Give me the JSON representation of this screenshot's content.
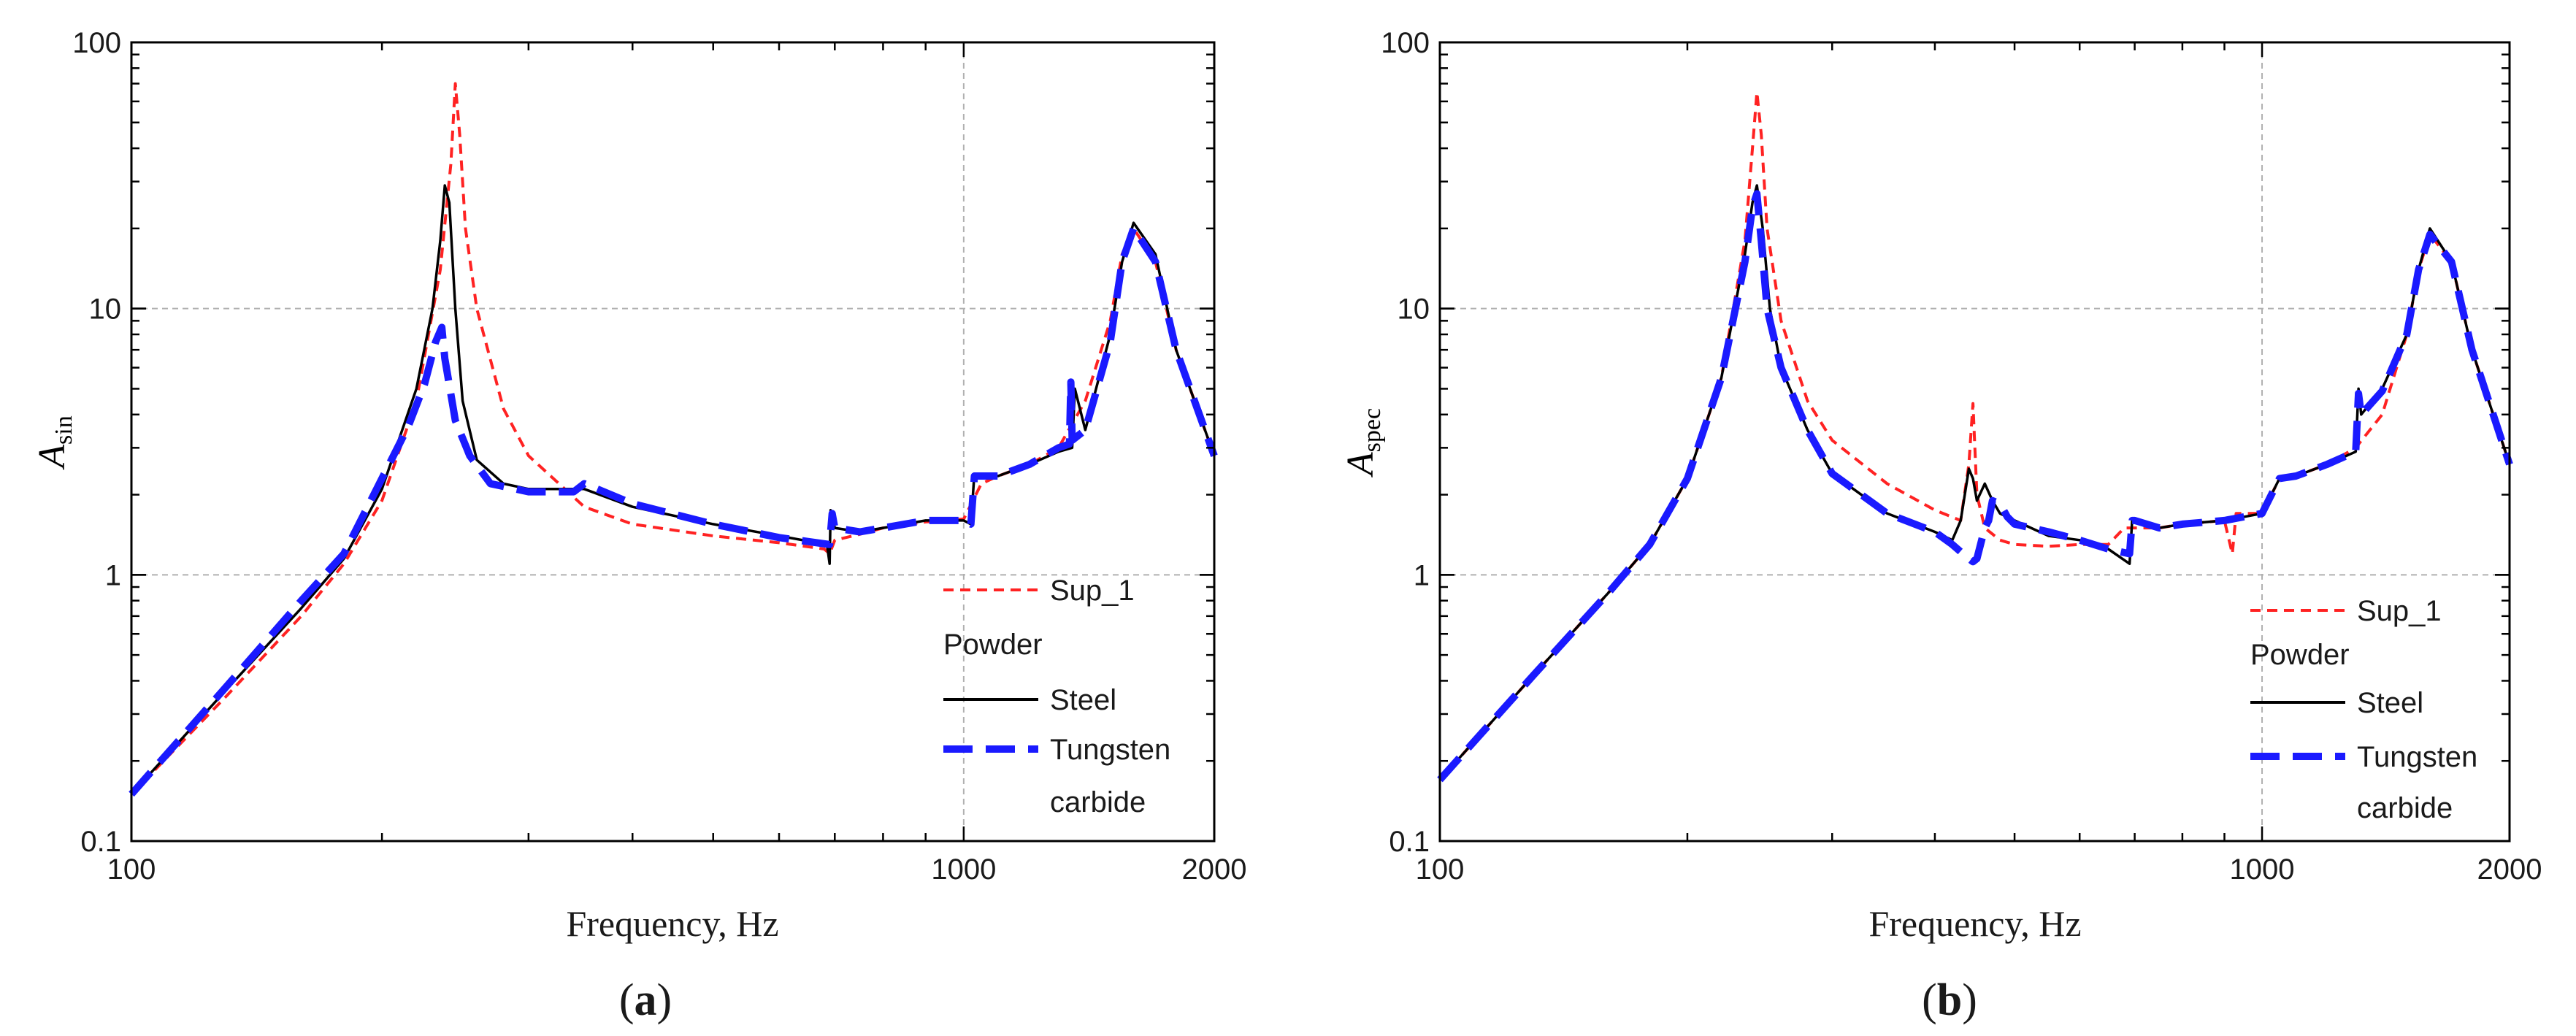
{
  "figure": {
    "panels": [
      {
        "label_open": "(",
        "label_letter": "a",
        "label_close": ")",
        "xlabel": "Frequency, Hz",
        "ylabel_main": "A",
        "ylabel_sub": "sin"
      },
      {
        "label_open": "(",
        "label_letter": "b",
        "label_close": ")",
        "xlabel": "Frequency, Hz",
        "ylabel_main": "A",
        "ylabel_sub": "spec"
      }
    ],
    "legend": {
      "sup": "Sup_1",
      "group": "Powder",
      "steel": "Steel",
      "tungsten_line1": "Tungsten",
      "tungsten_line2": "carbide"
    },
    "colors": {
      "sup": "#ff2222",
      "steel": "#000000",
      "tungsten": "#1a1aff",
      "grid": "#b0b0b0"
    }
  },
  "chart_data": [
    {
      "type": "line",
      "title": "(a)",
      "xlabel": "Frequency, Hz",
      "ylabel": "A_sin",
      "xscale": "log",
      "yscale": "log",
      "xlim": [
        100,
        2000
      ],
      "ylim": [
        0.1,
        100
      ],
      "xticks": [
        100,
        1000,
        2000
      ],
      "xtick_labels": [
        "100",
        "1000",
        "2000"
      ],
      "yticks": [
        0.1,
        1,
        10,
        100
      ],
      "ytick_labels": [
        "0.1",
        "1",
        "10",
        "100"
      ],
      "grid": true,
      "legend_position": "lower-right",
      "series": [
        {
          "name": "Sup_1",
          "style": "dashed-thin",
          "color": "#ff2222",
          "x": [
            100,
            130,
            160,
            180,
            200,
            220,
            235,
            242,
            245,
            248,
            252,
            260,
            280,
            300,
            350,
            400,
            500,
            600,
            680,
            690,
            700,
            750,
            800,
            900,
            1000,
            1050,
            1100,
            1200,
            1300,
            1400,
            1500,
            1550,
            1600,
            1700,
            1800,
            2000
          ],
          "y": [
            0.15,
            0.35,
            0.7,
            1.1,
            1.9,
            4.5,
            14,
            35,
            70,
            45,
            20,
            10,
            4.2,
            2.8,
            1.8,
            1.55,
            1.4,
            1.32,
            1.25,
            1.2,
            1.35,
            1.42,
            1.5,
            1.58,
            1.62,
            2.2,
            2.35,
            2.6,
            3.0,
            4.5,
            9,
            16,
            20,
            15,
            7,
            2.8
          ]
        },
        {
          "name": "Steel",
          "style": "solid",
          "color": "#000000",
          "x": [
            100,
            130,
            160,
            180,
            200,
            220,
            230,
            235,
            238,
            241,
            245,
            250,
            260,
            280,
            300,
            350,
            400,
            500,
            600,
            685,
            690,
            692,
            700,
            750,
            800,
            900,
            1000,
            1020,
            1030,
            1100,
            1200,
            1300,
            1350,
            1360,
            1400,
            1500,
            1550,
            1600,
            1700,
            1800,
            2000
          ],
          "y": [
            0.15,
            0.37,
            0.75,
            1.15,
            2.1,
            5.0,
            10,
            18,
            29,
            25,
            10,
            4.5,
            2.7,
            2.2,
            2.1,
            2.1,
            1.8,
            1.55,
            1.4,
            1.3,
            1.1,
            1.75,
            1.5,
            1.45,
            1.5,
            1.6,
            1.6,
            1.55,
            2.4,
            2.35,
            2.6,
            2.9,
            3.0,
            5.0,
            3.5,
            8,
            15,
            21,
            16,
            7,
            2.8
          ]
        },
        {
          "name": "Tungsten carbide",
          "style": "dashed-thick",
          "color": "#1a1aff",
          "x": [
            100,
            130,
            160,
            180,
            200,
            215,
            225,
            232,
            236,
            238,
            245,
            255,
            270,
            300,
            340,
            350,
            400,
            500,
            600,
            690,
            695,
            700,
            750,
            800,
            900,
            1000,
            1020,
            1030,
            1100,
            1200,
            1300,
            1340,
            1345,
            1350,
            1400,
            1500,
            1550,
            1600,
            1700,
            1800,
            2000
          ],
          "y": [
            0.15,
            0.38,
            0.8,
            1.2,
            2.3,
            3.6,
            5.2,
            7.5,
            8.5,
            6.5,
            3.8,
            2.8,
            2.2,
            2.05,
            2.05,
            2.2,
            1.85,
            1.55,
            1.38,
            1.3,
            1.7,
            1.5,
            1.45,
            1.5,
            1.6,
            1.6,
            1.55,
            2.35,
            2.35,
            2.6,
            3.0,
            3.1,
            5.3,
            3.2,
            3.5,
            7.5,
            15,
            20,
            15,
            7,
            2.8
          ]
        }
      ]
    },
    {
      "type": "line",
      "title": "(b)",
      "xlabel": "Frequency, Hz",
      "ylabel": "A_spec",
      "xscale": "log",
      "yscale": "log",
      "xlim": [
        100,
        2000
      ],
      "ylim": [
        0.1,
        100
      ],
      "xticks": [
        100,
        1000,
        2000
      ],
      "xtick_labels": [
        "100",
        "1000",
        "2000"
      ],
      "yticks": [
        0.1,
        1,
        10,
        100
      ],
      "ytick_labels": [
        "0.1",
        "1",
        "10",
        "100"
      ],
      "grid": true,
      "legend_position": "lower-right",
      "series": [
        {
          "name": "Sup_1",
          "style": "dashed-thin",
          "color": "#ff2222",
          "x": [
            100,
            130,
            160,
            180,
            200,
            220,
            235,
            240,
            243,
            246,
            250,
            260,
            280,
            300,
            350,
            400,
            430,
            440,
            445,
            450,
            460,
            480,
            500,
            550,
            600,
            650,
            680,
            700,
            750,
            800,
            900,
            920,
            930,
            1000,
            1050,
            1100,
            1200,
            1300,
            1400,
            1500,
            1550,
            1600,
            1700,
            1800,
            2000
          ],
          "y": [
            0.17,
            0.42,
            0.85,
            1.3,
            2.3,
            5.5,
            18,
            40,
            65,
            45,
            20,
            9,
            4.5,
            3.2,
            2.2,
            1.75,
            1.6,
            2.6,
            4.4,
            2.0,
            1.5,
            1.35,
            1.3,
            1.28,
            1.3,
            1.3,
            1.5,
            1.5,
            1.5,
            1.55,
            1.6,
            1.2,
            1.7,
            1.7,
            2.3,
            2.35,
            2.6,
            3.0,
            4.0,
            8,
            14,
            19,
            15,
            7,
            2.6
          ]
        },
        {
          "name": "Steel",
          "style": "solid",
          "color": "#000000",
          "x": [
            100,
            130,
            160,
            180,
            200,
            220,
            235,
            240,
            243,
            247,
            252,
            260,
            280,
            300,
            350,
            400,
            420,
            430,
            440,
            445,
            450,
            460,
            470,
            480,
            500,
            550,
            600,
            650,
            690,
            695,
            700,
            750,
            800,
            900,
            1000,
            1050,
            1100,
            1200,
            1300,
            1310,
            1320,
            1400,
            1500,
            1550,
            1600,
            1700,
            1800,
            2000
          ],
          "y": [
            0.17,
            0.42,
            0.85,
            1.3,
            2.3,
            5.5,
            16,
            25,
            29,
            20,
            10,
            6,
            3.5,
            2.4,
            1.7,
            1.45,
            1.35,
            1.6,
            2.5,
            2.3,
            1.9,
            2.2,
            1.9,
            1.7,
            1.6,
            1.4,
            1.35,
            1.25,
            1.1,
            1.6,
            1.6,
            1.5,
            1.55,
            1.6,
            1.7,
            2.3,
            2.35,
            2.6,
            2.9,
            5.0,
            4.0,
            5.0,
            8,
            14,
            20,
            15,
            7,
            2.6
          ]
        },
        {
          "name": "Tungsten carbide",
          "style": "dashed-thick",
          "color": "#1a1aff",
          "x": [
            100,
            130,
            160,
            180,
            200,
            220,
            235,
            240,
            243,
            246,
            250,
            260,
            280,
            300,
            350,
            400,
            420,
            430,
            440,
            445,
            450,
            460,
            465,
            470,
            480,
            490,
            500,
            550,
            600,
            650,
            690,
            695,
            700,
            750,
            800,
            900,
            1000,
            1050,
            1100,
            1200,
            1300,
            1310,
            1320,
            1400,
            1500,
            1550,
            1600,
            1700,
            1800,
            2000
          ],
          "y": [
            0.17,
            0.42,
            0.85,
            1.3,
            2.3,
            5.5,
            15,
            24,
            27,
            18,
            10,
            6,
            3.5,
            2.4,
            1.7,
            1.45,
            1.3,
            1.22,
            1.15,
            1.12,
            1.15,
            1.5,
            1.6,
            1.9,
            1.85,
            1.65,
            1.55,
            1.45,
            1.35,
            1.25,
            1.2,
            1.6,
            1.6,
            1.5,
            1.55,
            1.6,
            1.7,
            2.3,
            2.35,
            2.6,
            2.9,
            4.8,
            4.0,
            4.9,
            8,
            14,
            19,
            15,
            7,
            2.6
          ]
        }
      ]
    }
  ]
}
